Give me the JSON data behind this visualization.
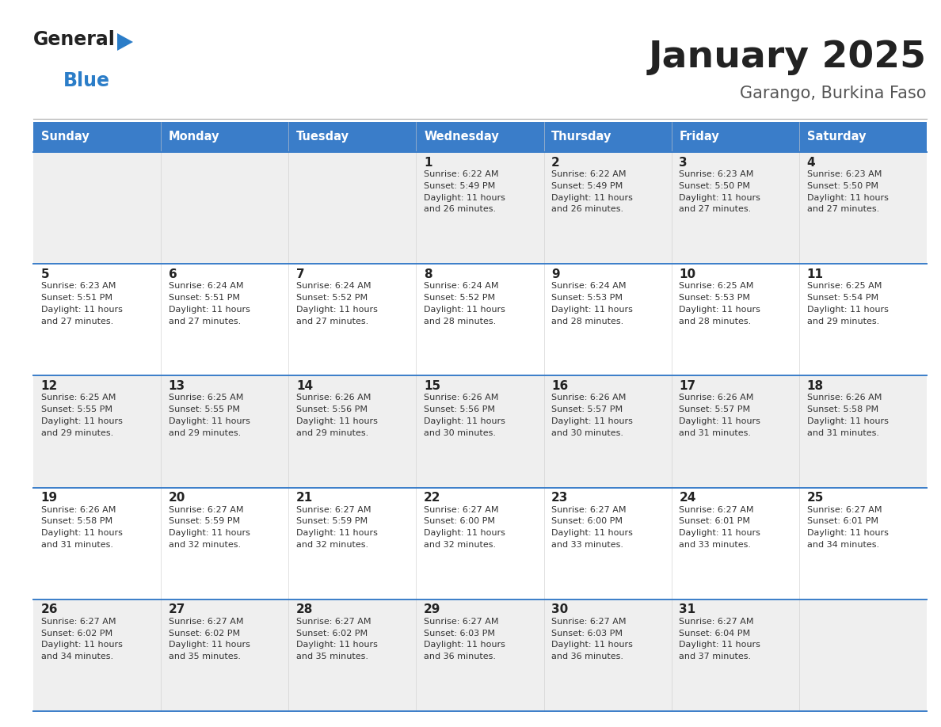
{
  "title": "January 2025",
  "subtitle": "Garango, Burkina Faso",
  "header_bg_color": "#3A7DC9",
  "header_text_color": "#FFFFFF",
  "row_bg_even": "#EFEFEF",
  "row_bg_odd": "#FFFFFF",
  "day_names": [
    "Sunday",
    "Monday",
    "Tuesday",
    "Wednesday",
    "Thursday",
    "Friday",
    "Saturday"
  ],
  "cell_border_color": "#3A7DC9",
  "title_color": "#222222",
  "subtitle_color": "#555555",
  "day_num_color": "#222222",
  "day_info_color": "#333333",
  "logo_general_color": "#222222",
  "logo_blue_color": "#2B7DC8",
  "logo_triangle_color": "#2B7DC8",
  "separator_color": "#AAAAAA",
  "calendar": [
    [
      null,
      null,
      null,
      {
        "day": 1,
        "sunrise": "6:22 AM",
        "sunset": "5:49 PM",
        "daylight_hours": 11,
        "daylight_minutes": 26
      },
      {
        "day": 2,
        "sunrise": "6:22 AM",
        "sunset": "5:49 PM",
        "daylight_hours": 11,
        "daylight_minutes": 26
      },
      {
        "day": 3,
        "sunrise": "6:23 AM",
        "sunset": "5:50 PM",
        "daylight_hours": 11,
        "daylight_minutes": 27
      },
      {
        "day": 4,
        "sunrise": "6:23 AM",
        "sunset": "5:50 PM",
        "daylight_hours": 11,
        "daylight_minutes": 27
      }
    ],
    [
      {
        "day": 5,
        "sunrise": "6:23 AM",
        "sunset": "5:51 PM",
        "daylight_hours": 11,
        "daylight_minutes": 27
      },
      {
        "day": 6,
        "sunrise": "6:24 AM",
        "sunset": "5:51 PM",
        "daylight_hours": 11,
        "daylight_minutes": 27
      },
      {
        "day": 7,
        "sunrise": "6:24 AM",
        "sunset": "5:52 PM",
        "daylight_hours": 11,
        "daylight_minutes": 27
      },
      {
        "day": 8,
        "sunrise": "6:24 AM",
        "sunset": "5:52 PM",
        "daylight_hours": 11,
        "daylight_minutes": 28
      },
      {
        "day": 9,
        "sunrise": "6:24 AM",
        "sunset": "5:53 PM",
        "daylight_hours": 11,
        "daylight_minutes": 28
      },
      {
        "day": 10,
        "sunrise": "6:25 AM",
        "sunset": "5:53 PM",
        "daylight_hours": 11,
        "daylight_minutes": 28
      },
      {
        "day": 11,
        "sunrise": "6:25 AM",
        "sunset": "5:54 PM",
        "daylight_hours": 11,
        "daylight_minutes": 29
      }
    ],
    [
      {
        "day": 12,
        "sunrise": "6:25 AM",
        "sunset": "5:55 PM",
        "daylight_hours": 11,
        "daylight_minutes": 29
      },
      {
        "day": 13,
        "sunrise": "6:25 AM",
        "sunset": "5:55 PM",
        "daylight_hours": 11,
        "daylight_minutes": 29
      },
      {
        "day": 14,
        "sunrise": "6:26 AM",
        "sunset": "5:56 PM",
        "daylight_hours": 11,
        "daylight_minutes": 29
      },
      {
        "day": 15,
        "sunrise": "6:26 AM",
        "sunset": "5:56 PM",
        "daylight_hours": 11,
        "daylight_minutes": 30
      },
      {
        "day": 16,
        "sunrise": "6:26 AM",
        "sunset": "5:57 PM",
        "daylight_hours": 11,
        "daylight_minutes": 30
      },
      {
        "day": 17,
        "sunrise": "6:26 AM",
        "sunset": "5:57 PM",
        "daylight_hours": 11,
        "daylight_minutes": 31
      },
      {
        "day": 18,
        "sunrise": "6:26 AM",
        "sunset": "5:58 PM",
        "daylight_hours": 11,
        "daylight_minutes": 31
      }
    ],
    [
      {
        "day": 19,
        "sunrise": "6:26 AM",
        "sunset": "5:58 PM",
        "daylight_hours": 11,
        "daylight_minutes": 31
      },
      {
        "day": 20,
        "sunrise": "6:27 AM",
        "sunset": "5:59 PM",
        "daylight_hours": 11,
        "daylight_minutes": 32
      },
      {
        "day": 21,
        "sunrise": "6:27 AM",
        "sunset": "5:59 PM",
        "daylight_hours": 11,
        "daylight_minutes": 32
      },
      {
        "day": 22,
        "sunrise": "6:27 AM",
        "sunset": "6:00 PM",
        "daylight_hours": 11,
        "daylight_minutes": 32
      },
      {
        "day": 23,
        "sunrise": "6:27 AM",
        "sunset": "6:00 PM",
        "daylight_hours": 11,
        "daylight_minutes": 33
      },
      {
        "day": 24,
        "sunrise": "6:27 AM",
        "sunset": "6:01 PM",
        "daylight_hours": 11,
        "daylight_minutes": 33
      },
      {
        "day": 25,
        "sunrise": "6:27 AM",
        "sunset": "6:01 PM",
        "daylight_hours": 11,
        "daylight_minutes": 34
      }
    ],
    [
      {
        "day": 26,
        "sunrise": "6:27 AM",
        "sunset": "6:02 PM",
        "daylight_hours": 11,
        "daylight_minutes": 34
      },
      {
        "day": 27,
        "sunrise": "6:27 AM",
        "sunset": "6:02 PM",
        "daylight_hours": 11,
        "daylight_minutes": 35
      },
      {
        "day": 28,
        "sunrise": "6:27 AM",
        "sunset": "6:02 PM",
        "daylight_hours": 11,
        "daylight_minutes": 35
      },
      {
        "day": 29,
        "sunrise": "6:27 AM",
        "sunset": "6:03 PM",
        "daylight_hours": 11,
        "daylight_minutes": 36
      },
      {
        "day": 30,
        "sunrise": "6:27 AM",
        "sunset": "6:03 PM",
        "daylight_hours": 11,
        "daylight_minutes": 36
      },
      {
        "day": 31,
        "sunrise": "6:27 AM",
        "sunset": "6:04 PM",
        "daylight_hours": 11,
        "daylight_minutes": 37
      },
      null
    ]
  ]
}
